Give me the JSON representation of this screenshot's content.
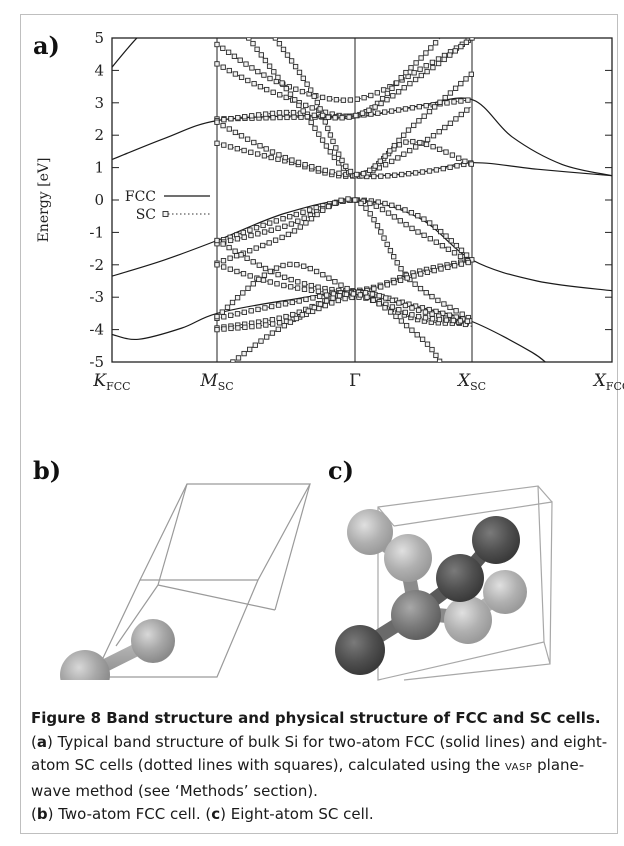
{
  "panels": {
    "a": "a)",
    "b": "b)",
    "c": "c)"
  },
  "chart_data": {
    "type": "line",
    "ylabel": "Energy [eV]",
    "ylim": [
      -5,
      5
    ],
    "yticks": [
      "5",
      "4",
      "3",
      "2",
      "1",
      "0",
      "-1",
      "-2",
      "-3",
      "-4",
      "-5"
    ],
    "xticks": [
      {
        "main": "K",
        "sub": "FCC"
      },
      {
        "main": "M",
        "sub": "SC"
      },
      {
        "main": "Γ",
        "sub": ""
      },
      {
        "main": "X",
        "sub": "SC"
      },
      {
        "main": "X",
        "sub": "FCC"
      }
    ],
    "legend": {
      "placement": "left-middle",
      "entries": [
        {
          "label": "FCC",
          "style": "solid line"
        },
        {
          "label": "SC",
          "style": "dotted line with squares"
        }
      ]
    },
    "series": [
      {
        "name": "FCC",
        "bands": [
          [
            [
              0.0,
              4.1
            ],
            [
              0.05,
              4.9
            ],
            [
              0.08,
              5.3
            ]
          ],
          [
            [
              0.0,
              1.25
            ],
            [
              0.12,
              1.9
            ],
            [
              0.24,
              2.45
            ],
            [
              0.4,
              2.6
            ],
            [
              0.5,
              2.55
            ],
            [
              0.62,
              2.9
            ],
            [
              0.72,
              3.1
            ],
            [
              0.8,
              1.95
            ],
            [
              0.9,
              1.1
            ],
            [
              1.0,
              0.75
            ]
          ],
          [
            [
              0.0,
              -2.35
            ],
            [
              0.12,
              -1.85
            ],
            [
              0.24,
              -1.25
            ],
            [
              0.37,
              -0.4
            ],
            [
              0.5,
              0.0
            ],
            [
              0.62,
              -0.55
            ],
            [
              0.72,
              -1.85
            ],
            [
              0.85,
              -2.5
            ],
            [
              1.0,
              -2.8
            ]
          ],
          [
            [
              0.0,
              -4.15
            ],
            [
              0.06,
              -4.3
            ],
            [
              0.16,
              -3.95
            ],
            [
              0.24,
              -3.5
            ],
            [
              0.37,
              -3.1
            ],
            [
              0.5,
              -2.85
            ],
            [
              0.62,
              -3.3
            ],
            [
              0.72,
              -3.75
            ],
            [
              0.84,
              -4.7
            ],
            [
              0.88,
              -5.2
            ]
          ],
          [
            [
              0.5,
              0.7
            ],
            [
              0.62,
              0.85
            ],
            [
              0.72,
              1.15
            ],
            [
              0.85,
              0.95
            ],
            [
              1.0,
              0.75
            ]
          ]
        ]
      },
      {
        "name": "SC",
        "bands": [
          [
            [
              0.24,
              4.8
            ],
            [
              0.36,
              3.6
            ],
            [
              0.5,
              3.1
            ],
            [
              0.64,
              4.2
            ],
            [
              0.72,
              5.0
            ]
          ],
          [
            [
              0.24,
              4.2
            ],
            [
              0.35,
              3.3
            ],
            [
              0.5,
              2.6
            ],
            [
              0.6,
              4.0
            ],
            [
              0.66,
              5.0
            ]
          ],
          [
            [
              0.24,
              2.5
            ],
            [
              0.37,
              2.55
            ],
            [
              0.5,
              2.6
            ],
            [
              0.63,
              2.9
            ],
            [
              0.72,
              3.1
            ]
          ],
          [
            [
              0.24,
              2.45
            ],
            [
              0.37,
              2.7
            ],
            [
              0.5,
              2.6
            ],
            [
              0.63,
              3.9
            ],
            [
              0.72,
              5.0
            ]
          ],
          [
            [
              0.24,
              1.75
            ],
            [
              0.37,
              1.2
            ],
            [
              0.5,
              0.75
            ],
            [
              0.63,
              1.8
            ],
            [
              0.72,
              2.9
            ]
          ],
          [
            [
              0.24,
              2.4
            ],
            [
              0.37,
              1.3
            ],
            [
              0.5,
              0.75
            ],
            [
              0.62,
              0.85
            ],
            [
              0.72,
              1.15
            ]
          ],
          [
            [
              0.3,
              5.0
            ],
            [
              0.4,
              2.8
            ],
            [
              0.5,
              0.75
            ],
            [
              0.6,
              1.8
            ],
            [
              0.72,
              1.1
            ]
          ],
          [
            [
              0.35,
              5.0
            ],
            [
              0.42,
              3.3
            ],
            [
              0.5,
              0.8
            ],
            [
              0.61,
              2.3
            ],
            [
              0.72,
              3.9
            ]
          ],
          [
            [
              0.24,
              -1.3
            ],
            [
              0.37,
              -0.55
            ],
            [
              0.5,
              0.0
            ],
            [
              0.62,
              -0.5
            ],
            [
              0.72,
              -1.85
            ]
          ],
          [
            [
              0.24,
              -1.35
            ],
            [
              0.37,
              -0.8
            ],
            [
              0.5,
              0.0
            ],
            [
              0.62,
              -1.0
            ],
            [
              0.72,
              -1.95
            ]
          ],
          [
            [
              0.24,
              -1.95
            ],
            [
              0.37,
              -1.1
            ],
            [
              0.5,
              0.0
            ],
            [
              0.6,
              -2.4
            ],
            [
              0.72,
              -3.7
            ]
          ],
          [
            [
              0.24,
              -1.25
            ],
            [
              0.37,
              -2.4
            ],
            [
              0.5,
              -2.8
            ],
            [
              0.62,
              -2.2
            ],
            [
              0.72,
              -1.85
            ]
          ],
          [
            [
              0.24,
              -2.0
            ],
            [
              0.37,
              -2.65
            ],
            [
              0.5,
              -2.85
            ],
            [
              0.62,
              -2.3
            ],
            [
              0.72,
              -1.9
            ]
          ],
          [
            [
              0.24,
              -3.65
            ],
            [
              0.37,
              -3.2
            ],
            [
              0.5,
              -2.85
            ],
            [
              0.62,
              -3.3
            ],
            [
              0.72,
              -3.75
            ]
          ],
          [
            [
              0.24,
              -3.6
            ],
            [
              0.37,
              -2.0
            ],
            [
              0.5,
              -2.85
            ],
            [
              0.62,
              -3.7
            ],
            [
              0.72,
              -3.8
            ]
          ],
          [
            [
              0.24,
              -3.95
            ],
            [
              0.37,
              -3.6
            ],
            [
              0.5,
              -2.85
            ],
            [
              0.62,
              -3.4
            ],
            [
              0.72,
              -3.9
            ]
          ],
          [
            [
              0.24,
              -4.0
            ],
            [
              0.37,
              -3.75
            ],
            [
              0.5,
              -3.0
            ],
            [
              0.62,
              -3.6
            ],
            [
              0.72,
              -3.75
            ]
          ],
          [
            [
              0.27,
              -5.0
            ],
            [
              0.37,
              -3.85
            ],
            [
              0.5,
              -2.9
            ],
            [
              0.62,
              -4.2
            ],
            [
              0.66,
              -5.0
            ]
          ]
        ]
      }
    ]
  },
  "caption": {
    "title": "Figure 8 Band structure and physical structure of FCC and SC cells.",
    "a_prefix": "(",
    "a_letter": "a",
    "a_text": ") Typical band structure of bulk Si for two-atom FCC (solid lines) and eight-atom SC cells (dotted lines with squares), calculated using the ",
    "vasp": "VASP",
    "a_text2": " plane-wave method (see ‘Methods’ section).",
    "b_prefix": "(",
    "b_letter": "b",
    "b_text": ") Two-atom FCC cell. (",
    "c_letter": "c",
    "c_text": ") Eight-atom SC cell."
  }
}
